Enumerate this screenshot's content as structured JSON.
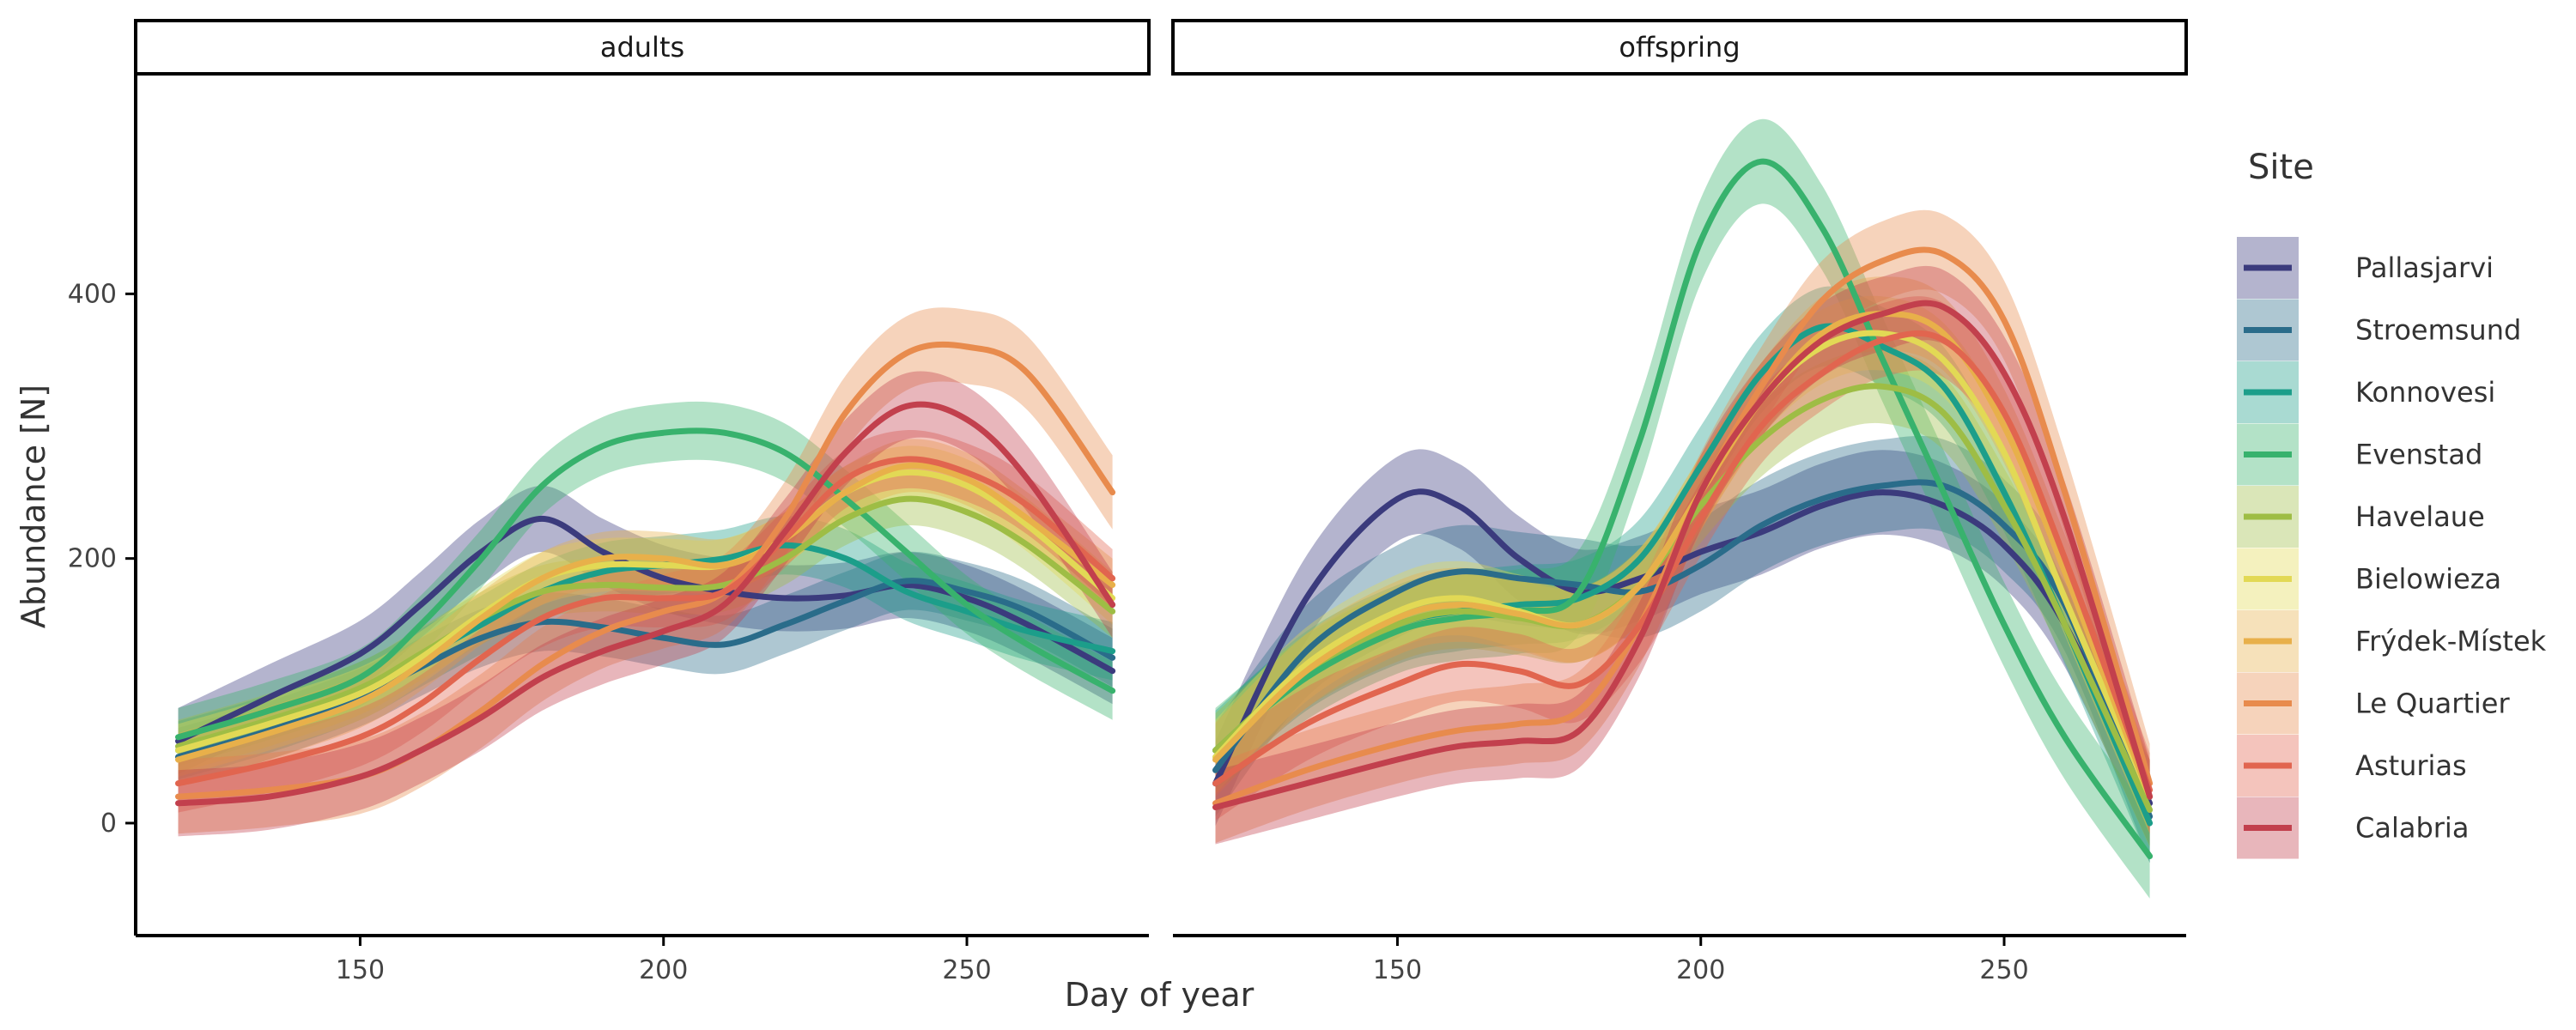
{
  "chart_data": {
    "type": "line",
    "facets": [
      "adults",
      "offspring"
    ],
    "xlabel": "Day of year",
    "ylabel": "Abundance [N]",
    "xlim": [
      113,
      280
    ],
    "ylim": [
      -85,
      565
    ],
    "x_ticks": [
      150,
      200,
      250
    ],
    "y_ticks": [
      0,
      200,
      400
    ],
    "legend_title": "Site",
    "legend_position": "right",
    "grid": false,
    "x": [
      120,
      135,
      150,
      160,
      170,
      180,
      190,
      200,
      210,
      220,
      230,
      240,
      250,
      260,
      274
    ],
    "series": [
      {
        "name": "Pallasjarvi",
        "color": "#3b3b7d",
        "adults": [
          62,
          95,
          128,
          165,
          205,
          230,
          205,
          185,
          175,
          170,
          172,
          180,
          170,
          150,
          115
        ],
        "offspring": [
          30,
          170,
          245,
          240,
          200,
          175,
          185,
          205,
          220,
          240,
          250,
          240,
          210,
          150,
          15
        ],
        "ci_adults": 25,
        "ci_offspring": 32
      },
      {
        "name": "Stroemsund",
        "color": "#2a6c8a",
        "adults": [
          50,
          70,
          95,
          118,
          140,
          152,
          148,
          140,
          135,
          150,
          168,
          183,
          175,
          160,
          125
        ],
        "offspring": [
          40,
          130,
          175,
          190,
          185,
          180,
          175,
          195,
          225,
          245,
          255,
          255,
          225,
          165,
          5
        ],
        "ci_adults": 22,
        "ci_offspring": 35
      },
      {
        "name": "Konnovesi",
        "color": "#1c9e8a",
        "adults": [
          55,
          75,
          100,
          125,
          150,
          175,
          190,
          195,
          200,
          210,
          200,
          175,
          160,
          145,
          130
        ],
        "offspring": [
          55,
          115,
          150,
          160,
          165,
          170,
          200,
          270,
          340,
          375,
          360,
          330,
          250,
          150,
          0
        ],
        "ci_adults": 22,
        "ci_offspring": 30
      },
      {
        "name": "Evenstad",
        "color": "#38b26d",
        "adults": [
          65,
          85,
          110,
          150,
          200,
          255,
          285,
          295,
          295,
          280,
          245,
          205,
          165,
          135,
          100
        ],
        "offspring": [
          55,
          110,
          145,
          155,
          160,
          175,
          290,
          440,
          500,
          450,
          350,
          250,
          150,
          65,
          -25
        ],
        "ci_adults": 22,
        "ci_offspring": 32
      },
      {
        "name": "Havelaue",
        "color": "#9ebd45",
        "adults": [
          58,
          78,
          102,
          128,
          155,
          175,
          180,
          178,
          180,
          200,
          230,
          245,
          235,
          210,
          160
        ],
        "offspring": [
          55,
          115,
          150,
          160,
          155,
          150,
          180,
          240,
          290,
          320,
          330,
          310,
          240,
          150,
          10
        ],
        "ci_adults": 20,
        "ci_offspring": 28
      },
      {
        "name": "Bielowieza",
        "color": "#e2d955",
        "adults": [
          55,
          75,
          98,
          125,
          158,
          185,
          195,
          195,
          195,
          215,
          250,
          265,
          255,
          225,
          170
        ],
        "offspring": [
          50,
          120,
          160,
          170,
          160,
          150,
          180,
          250,
          320,
          360,
          370,
          350,
          280,
          170,
          20
        ],
        "ci_adults": 20,
        "ci_offspring": 28
      },
      {
        "name": "Frýdek-Místek",
        "color": "#e8b04a",
        "adults": [
          48,
          68,
          92,
          120,
          155,
          185,
          200,
          200,
          195,
          215,
          250,
          270,
          260,
          230,
          180
        ],
        "offspring": [
          48,
          115,
          155,
          165,
          158,
          150,
          180,
          250,
          320,
          370,
          385,
          370,
          300,
          190,
          20
        ],
        "ci_adults": 20,
        "ci_offspring": 28
      },
      {
        "name": "Le Quartier",
        "color": "#e88b4d",
        "adults": [
          20,
          25,
          35,
          55,
          85,
          120,
          145,
          160,
          175,
          230,
          310,
          355,
          360,
          340,
          250
        ],
        "offspring": [
          15,
          40,
          60,
          70,
          75,
          85,
          150,
          250,
          330,
          395,
          425,
          430,
          380,
          250,
          30
        ],
        "ci_adults": 28,
        "ci_offspring": 30
      },
      {
        "name": "Asturias",
        "color": "#e1654f",
        "adults": [
          30,
          45,
          65,
          90,
          125,
          155,
          170,
          170,
          175,
          215,
          260,
          275,
          265,
          240,
          185
        ],
        "offspring": [
          30,
          75,
          105,
          120,
          115,
          105,
          150,
          230,
          300,
          340,
          365,
          365,
          310,
          200,
          25
        ],
        "ci_adults": 22,
        "ci_offspring": 28
      },
      {
        "name": "Calabria",
        "color": "#c2404d",
        "adults": [
          15,
          20,
          35,
          55,
          80,
          110,
          130,
          145,
          165,
          220,
          280,
          315,
          305,
          260,
          165
        ],
        "offspring": [
          12,
          30,
          48,
          58,
          62,
          70,
          140,
          250,
          320,
          365,
          385,
          390,
          340,
          230,
          20
        ],
        "ci_adults": 25,
        "ci_offspring": 28
      }
    ]
  }
}
